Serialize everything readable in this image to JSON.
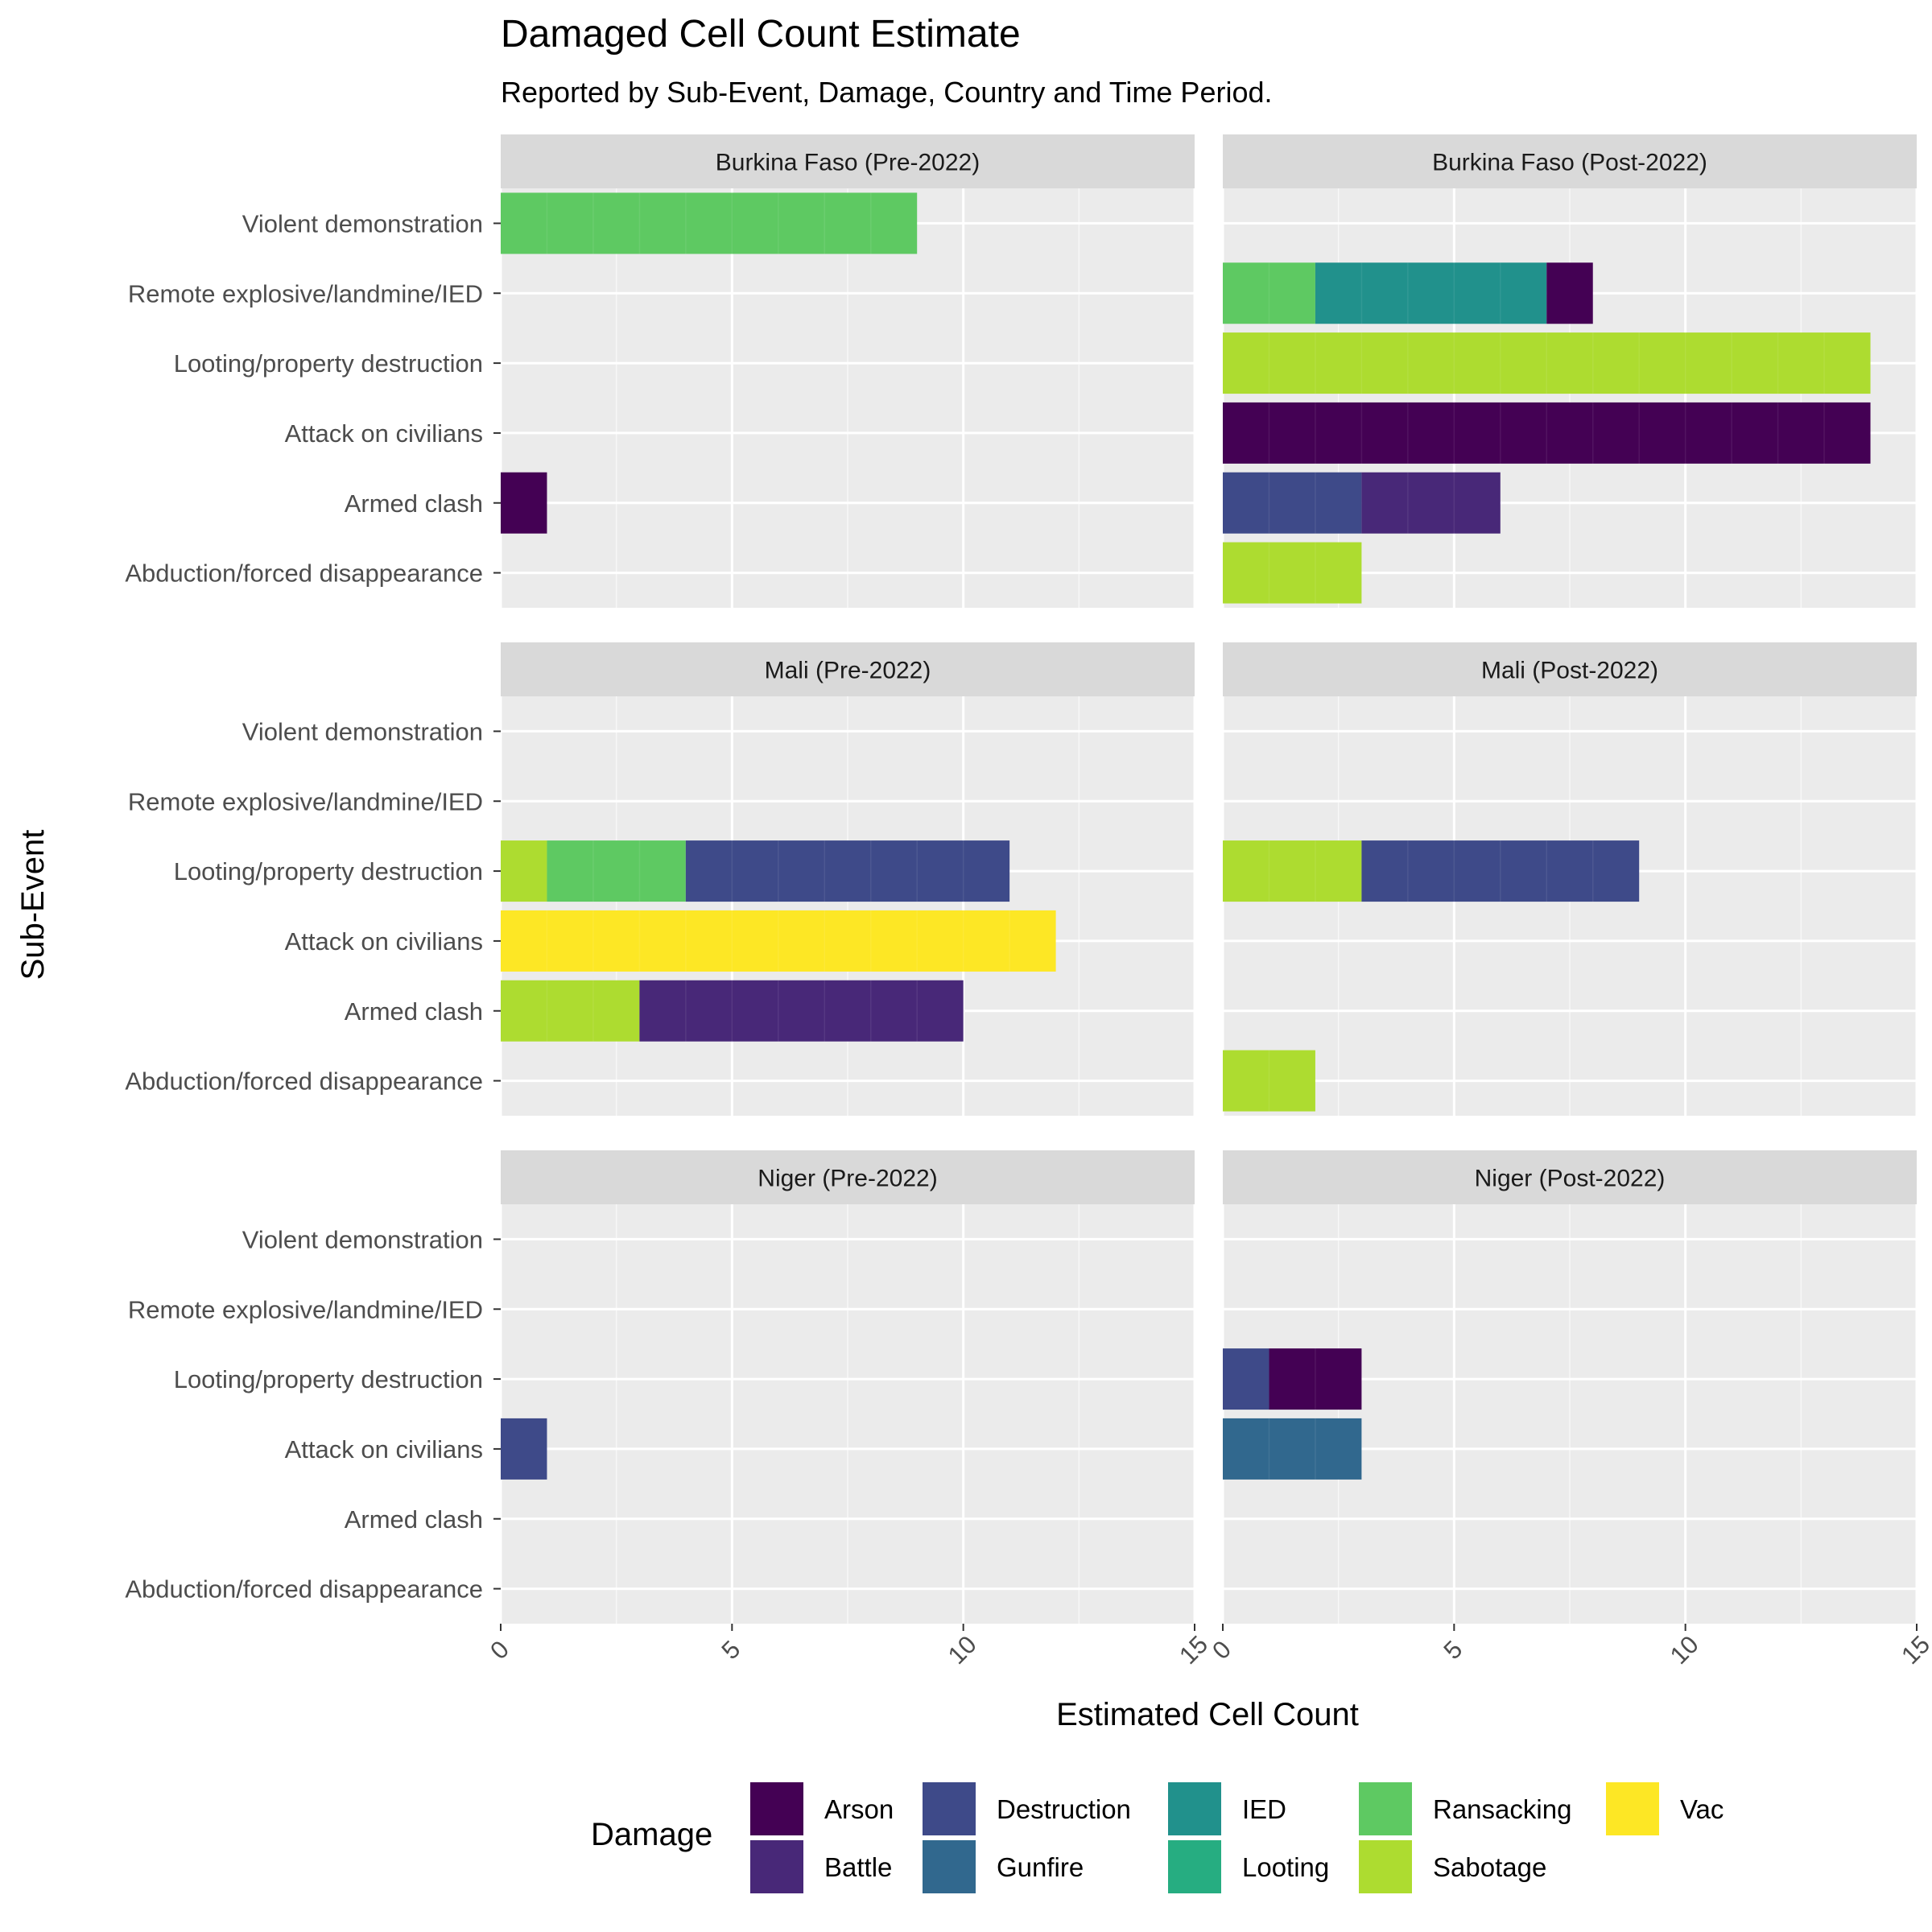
{
  "chart_data": {
    "type": "bar",
    "orientation": "horizontal-stacked",
    "title": "Damaged Cell Count Estimate",
    "subtitle": "Reported by Sub-Event, Damage, Country and Time Period.",
    "xlabel": "Estimated Cell Count",
    "ylabel": "Sub-Event",
    "xlim": [
      0,
      15
    ],
    "x_ticks": [
      0,
      5,
      10,
      15
    ],
    "grid": true,
    "legend_placement": "bottom",
    "legend_title": "Damage",
    "categories": [
      "Abduction/forced disappearance",
      "Armed clash",
      "Attack on civilians",
      "Looting/property destruction",
      "Remote explosive/landmine/IED",
      "Violent demonstration"
    ],
    "damage_types": [
      {
        "name": "Arson",
        "color": "#440154"
      },
      {
        "name": "Battle",
        "color": "#482878"
      },
      {
        "name": "Destruction",
        "color": "#3e4a89"
      },
      {
        "name": "Gunfire",
        "color": "#31688e"
      },
      {
        "name": "IED",
        "color": "#21918c"
      },
      {
        "name": "Looting",
        "color": "#26ad81"
      },
      {
        "name": "Ransacking",
        "color": "#5ec962"
      },
      {
        "name": "Sabotage",
        "color": "#addc30"
      },
      {
        "name": "Vac",
        "color": "#fde725"
      }
    ],
    "panels": [
      {
        "label": "Burkina Faso (Pre-2022)",
        "bars": [
          {
            "category": "Violent demonstration",
            "segments": [
              {
                "damage": "Ransacking",
                "value": 9
              }
            ]
          },
          {
            "category": "Armed clash",
            "segments": [
              {
                "damage": "Arson",
                "value": 1
              }
            ]
          }
        ]
      },
      {
        "label": "Burkina Faso (Post-2022)",
        "bars": [
          {
            "category": "Remote explosive/landmine/IED",
            "segments": [
              {
                "damage": "Ransacking",
                "value": 2
              },
              {
                "damage": "IED",
                "value": 5
              },
              {
                "damage": "Arson",
                "value": 1
              }
            ]
          },
          {
            "category": "Looting/property destruction",
            "segments": [
              {
                "damage": "Sabotage",
                "value": 14
              }
            ]
          },
          {
            "category": "Attack on civilians",
            "segments": [
              {
                "damage": "Arson",
                "value": 14
              }
            ]
          },
          {
            "category": "Armed clash",
            "segments": [
              {
                "damage": "Destruction",
                "value": 3
              },
              {
                "damage": "Battle",
                "value": 3
              }
            ]
          },
          {
            "category": "Abduction/forced disappearance",
            "segments": [
              {
                "damage": "Sabotage",
                "value": 3
              }
            ]
          }
        ]
      },
      {
        "label": "Mali (Pre-2022)",
        "bars": [
          {
            "category": "Looting/property destruction",
            "segments": [
              {
                "damage": "Sabotage",
                "value": 1
              },
              {
                "damage": "Ransacking",
                "value": 3
              },
              {
                "damage": "Destruction",
                "value": 7
              }
            ]
          },
          {
            "category": "Attack on civilians",
            "segments": [
              {
                "damage": "Vac",
                "value": 12
              }
            ]
          },
          {
            "category": "Armed clash",
            "segments": [
              {
                "damage": "Sabotage",
                "value": 3
              },
              {
                "damage": "Battle",
                "value": 7
              }
            ]
          }
        ]
      },
      {
        "label": "Mali (Post-2022)",
        "bars": [
          {
            "category": "Looting/property destruction",
            "segments": [
              {
                "damage": "Sabotage",
                "value": 3
              },
              {
                "damage": "Destruction",
                "value": 6
              }
            ]
          },
          {
            "category": "Abduction/forced disappearance",
            "segments": [
              {
                "damage": "Sabotage",
                "value": 2
              }
            ]
          }
        ]
      },
      {
        "label": "Niger (Pre-2022)",
        "bars": [
          {
            "category": "Attack on civilians",
            "segments": [
              {
                "damage": "Destruction",
                "value": 1
              }
            ]
          }
        ]
      },
      {
        "label": "Niger (Post-2022)",
        "bars": [
          {
            "category": "Looting/property destruction",
            "segments": [
              {
                "damage": "Destruction",
                "value": 1
              },
              {
                "damage": "Arson",
                "value": 2
              }
            ]
          },
          {
            "category": "Attack on civilians",
            "segments": [
              {
                "damage": "Gunfire",
                "value": 3
              }
            ]
          }
        ]
      }
    ]
  }
}
